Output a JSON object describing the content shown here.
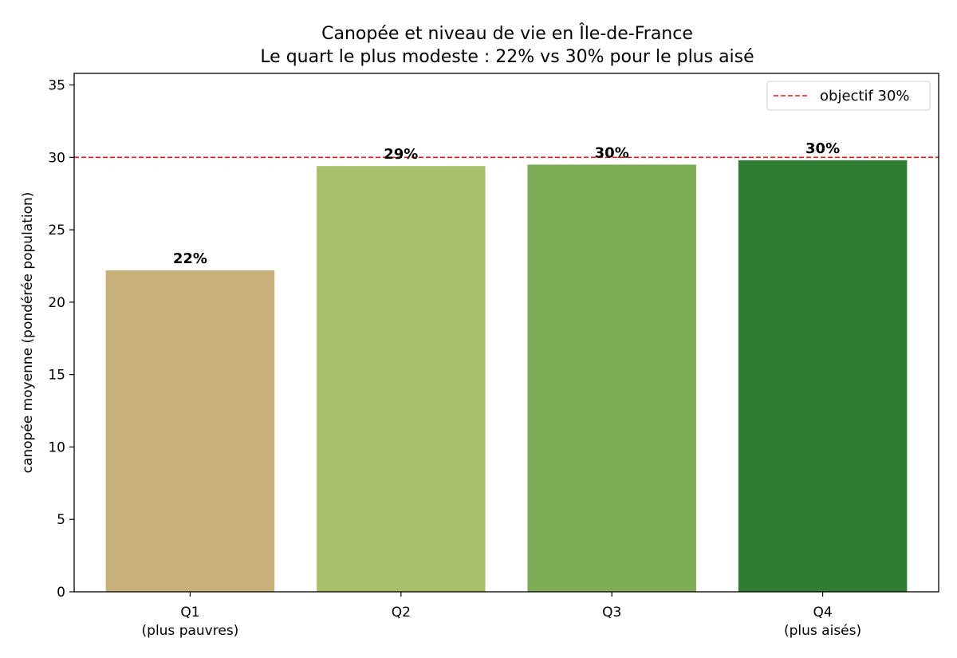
{
  "chart_data": {
    "type": "bar",
    "title": "Canopée et niveau de vie en Île-de-France",
    "subtitle": "Le quart le plus modeste : 22% vs 30% pour le plus aisé",
    "ylabel": "canopée moyenne (pondérée population)",
    "xlabel": "",
    "categories": [
      {
        "name": "Q1",
        "sub": "(plus pauvres)"
      },
      {
        "name": "Q2",
        "sub": ""
      },
      {
        "name": "Q3",
        "sub": ""
      },
      {
        "name": "Q4",
        "sub": "(plus aisés)"
      }
    ],
    "values": [
      22.2,
      29.4,
      29.5,
      29.8
    ],
    "data_labels": [
      "22%",
      "29%",
      "30%",
      "30%"
    ],
    "colors": [
      "#c8b07b",
      "#a9bf6e",
      "#7fac56",
      "#2f7d32"
    ],
    "ylim": [
      0,
      35.8
    ],
    "yticks": [
      0,
      5,
      10,
      15,
      20,
      25,
      30,
      35
    ],
    "reference_line": {
      "value": 30,
      "label": "objectif 30%",
      "color": "#e31a1c",
      "style": "dashed"
    },
    "legend_position": "top-right",
    "grid": false
  }
}
